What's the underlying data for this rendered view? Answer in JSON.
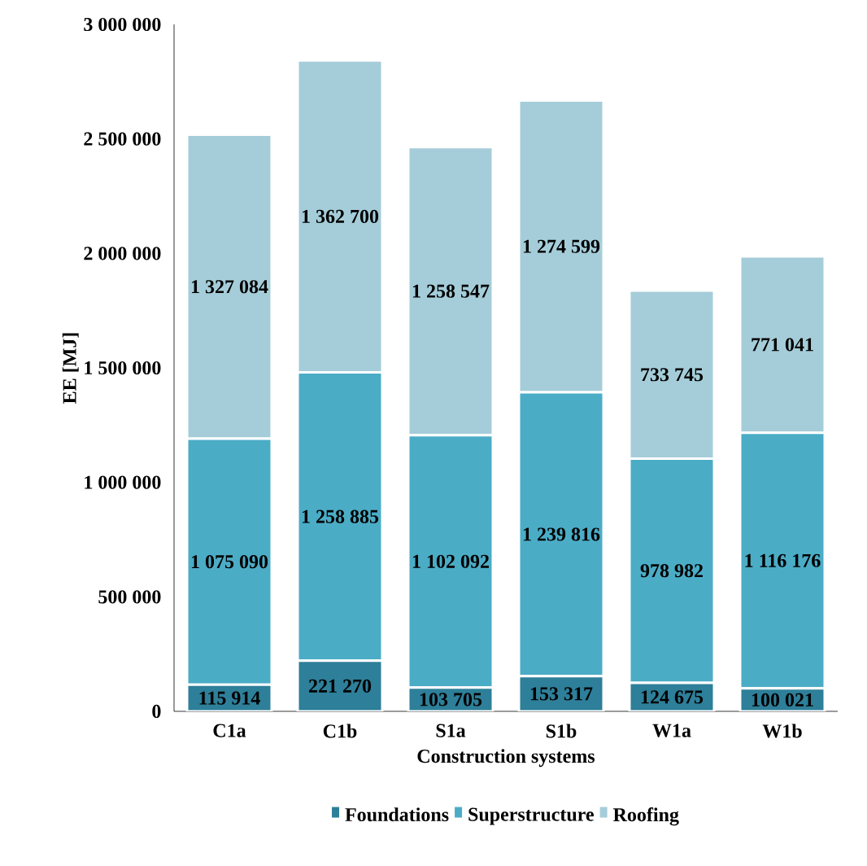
{
  "chart_data": {
    "type": "bar",
    "stacked": true,
    "xlabel": "Construction systems",
    "ylabel": "EE [MJ]",
    "categories": [
      "C1a",
      "C1b",
      "S1a",
      "S1b",
      "W1a",
      "W1b"
    ],
    "ylim": [
      0,
      3000000
    ],
    "yticks": [
      {
        "value": 0,
        "label": "0"
      },
      {
        "value": 500000,
        "label": "500 000"
      },
      {
        "value": 1000000,
        "label": "1 000 000"
      },
      {
        "value": 1500000,
        "label": "1 500 000"
      },
      {
        "value": 2000000,
        "label": "2 000 000"
      },
      {
        "value": 2500000,
        "label": "2 500 000"
      },
      {
        "value": 3000000,
        "label": "3 000 000"
      }
    ],
    "legend": "bottom",
    "grid": false,
    "series": [
      {
        "name": "Foundations",
        "color": "#2e7f99",
        "values": [
          115914,
          221270,
          103705,
          153317,
          124675,
          100021
        ],
        "value_labels": [
          "115 914",
          "221 270",
          "103 705",
          "153 317",
          "124 675",
          "100 021"
        ]
      },
      {
        "name": "Superstructure",
        "color": "#4bacc6",
        "values": [
          1075090,
          1258885,
          1102092,
          1239816,
          978982,
          1116176
        ],
        "value_labels": [
          "1 075 090",
          "1 258 885",
          "1 102 092",
          "1 239 816",
          "978 982",
          "1 116 176"
        ]
      },
      {
        "name": "Roofing",
        "color": "#a5cdd9",
        "values": [
          1327084,
          1362700,
          1258547,
          1274599,
          733745,
          771041
        ],
        "value_labels": [
          "1 327 084",
          "1 362 700",
          "1 258 547",
          "1 274 599",
          "733 745",
          "771 041"
        ]
      }
    ]
  }
}
